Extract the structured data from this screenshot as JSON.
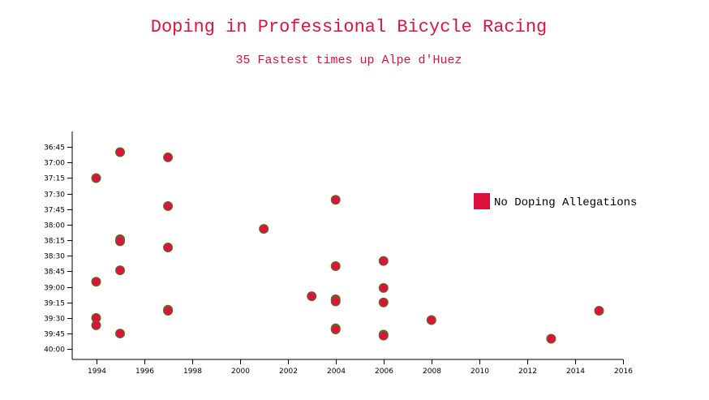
{
  "chart_data": {
    "type": "scatter",
    "title": "Doping in Professional Bicycle Racing",
    "subtitle": "35 Fastest times up Alpe d'Huez",
    "xlabel": "",
    "ylabel": "",
    "xlim": [
      1993,
      2016
    ],
    "ylim_seconds": [
      2190,
      2410
    ],
    "x_ticks": [
      1994,
      1996,
      1998,
      2000,
      2002,
      2004,
      2006,
      2008,
      2010,
      2012,
      2014,
      2016
    ],
    "y_ticks": [
      "36:45",
      "37:00",
      "37:15",
      "37:30",
      "37:45",
      "38:00",
      "38:15",
      "38:30",
      "38:45",
      "39:00",
      "39:15",
      "39:30",
      "39:45",
      "40:00"
    ],
    "y_reversed": true,
    "grid": false,
    "legend_position": "right",
    "series": [
      {
        "name": "No Doping Allegations",
        "color": "#dc143c",
        "points": [
          {
            "x": 1995,
            "y": "36:50"
          },
          {
            "x": 1997,
            "y": "36:55"
          },
          {
            "x": 1994,
            "y": "37:15"
          },
          {
            "x": 2004,
            "y": "37:36"
          },
          {
            "x": 1997,
            "y": "37:42"
          },
          {
            "x": 2001,
            "y": "38:04"
          },
          {
            "x": 1995,
            "y": "38:14"
          },
          {
            "x": 1995,
            "y": "38:16"
          },
          {
            "x": 1997,
            "y": "38:22"
          },
          {
            "x": 2006,
            "y": "38:35"
          },
          {
            "x": 2004,
            "y": "38:40"
          },
          {
            "x": 1995,
            "y": "38:44"
          },
          {
            "x": 1994,
            "y": "38:55"
          },
          {
            "x": 2006,
            "y": "39:01"
          },
          {
            "x": 2003,
            "y": "39:09"
          },
          {
            "x": 2004,
            "y": "39:12"
          },
          {
            "x": 2004,
            "y": "39:14"
          },
          {
            "x": 2006,
            "y": "39:15"
          },
          {
            "x": 1997,
            "y": "39:22"
          },
          {
            "x": 1997,
            "y": "39:23"
          },
          {
            "x": 2015,
            "y": "39:23"
          },
          {
            "x": 1994,
            "y": "39:30"
          },
          {
            "x": 2008,
            "y": "39:32"
          },
          {
            "x": 1994,
            "y": "39:37"
          },
          {
            "x": 2004,
            "y": "39:40"
          },
          {
            "x": 2004,
            "y": "39:41"
          },
          {
            "x": 1995,
            "y": "39:45"
          },
          {
            "x": 2006,
            "y": "39:46"
          },
          {
            "x": 2006,
            "y": "39:47"
          },
          {
            "x": 2013,
            "y": "39:50"
          }
        ]
      }
    ]
  }
}
